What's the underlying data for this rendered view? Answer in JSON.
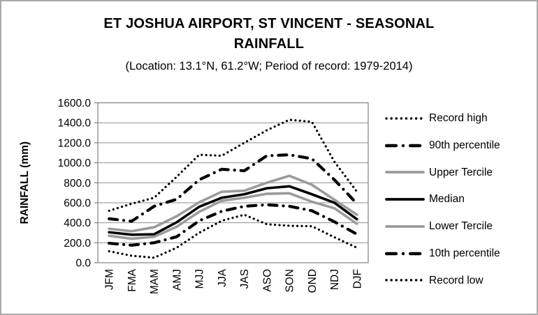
{
  "header": {
    "title_line1": "ET JOSHUA AIRPORT, ST VINCENT - SEASONAL",
    "title_line2": "RAINFALL",
    "subtitle": "(Location: 13.1°N, 61.2°W; Period of record: 1979-2014)"
  },
  "chart_data": {
    "type": "line",
    "title": "ET JOSHUA AIRPORT, ST VINCENT - SEASONAL RAINFALL",
    "subtitle": "(Location: 13.1°N, 61.2°W; Period of record: 1979-2014)",
    "xlabel": "",
    "ylabel": "RAINFALL (mm)",
    "ylim": [
      0,
      1600
    ],
    "ytick_step": 200,
    "ytick_labels": [
      "0.0",
      "200.0",
      "400.0",
      "600.0",
      "800.0",
      "1000.0",
      "1200.0",
      "1400.0",
      "1600.0"
    ],
    "grid": true,
    "legend_position": "right",
    "categories": [
      "JFM",
      "FMA",
      "MAM",
      "AMJ",
      "MJJ",
      "JJA",
      "JAS",
      "ASO",
      "SON",
      "OND",
      "NDJ",
      "DJF"
    ],
    "series": [
      {
        "name": "Record high",
        "style": "dotted",
        "color": "#000000",
        "values": [
          520,
          590,
          650,
          860,
          1080,
          1070,
          1200,
          1325,
          1430,
          1410,
          1010,
          710
        ]
      },
      {
        "name": "90th percentile",
        "style": "dashdot",
        "color": "#000000",
        "values": [
          440,
          415,
          565,
          635,
          830,
          935,
          920,
          1070,
          1080,
          1040,
          830,
          590
        ]
      },
      {
        "name": "Upper Tercile",
        "style": "solid",
        "color": "#9b9b9b",
        "values": [
          340,
          315,
          355,
          465,
          605,
          710,
          720,
          800,
          870,
          780,
          630,
          480
        ]
      },
      {
        "name": "Median",
        "style": "solid",
        "color": "#000000",
        "values": [
          305,
          280,
          285,
          405,
          560,
          650,
          685,
          745,
          765,
          685,
          600,
          435
        ]
      },
      {
        "name": "Lower Tercile",
        "style": "solid",
        "color": "#9b9b9b",
        "values": [
          270,
          240,
          260,
          360,
          510,
          620,
          650,
          690,
          695,
          610,
          545,
          390
        ]
      },
      {
        "name": "10th percentile",
        "style": "dashdot",
        "color": "#000000",
        "values": [
          195,
          175,
          200,
          260,
          420,
          515,
          565,
          580,
          565,
          520,
          410,
          285
        ]
      },
      {
        "name": "Record low",
        "style": "dotted",
        "color": "#000000",
        "values": [
          115,
          70,
          50,
          150,
          300,
          420,
          480,
          385,
          370,
          365,
          255,
          150
        ]
      }
    ],
    "colors": {
      "gridline": "#8e8e8e",
      "plot_border": "#808080",
      "text": "#000000",
      "tercile_gray": "#9b9b9b"
    }
  }
}
